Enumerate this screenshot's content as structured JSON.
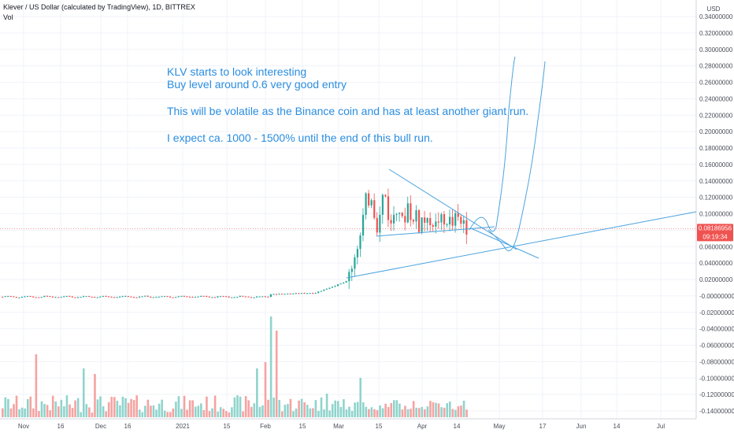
{
  "header": {
    "symbol_line": "Klever / US Dollar (calculated by TradingView), 1D, BITTREX",
    "vol_label": "Vol"
  },
  "annotation": {
    "lines": [
      "KLV starts to look interesting",
      "Buy level around 0.6 very good entry",
      "",
      "This will be volatile as the Binance coin and has at least another giant run.",
      "",
      "I expect ca. 1000 - 1500% until the end of this bull run."
    ]
  },
  "colors": {
    "up": "#26a69a",
    "down": "#ef5350",
    "vol_up": "#8fd4cc",
    "vol_down": "#f5a3a1",
    "drawing": "#4aa3df",
    "price_line": "#ef5350",
    "price_tag_bg": "#ef5350"
  },
  "price_tag": {
    "price": "0.08186956",
    "countdown": "09:19:34"
  },
  "chart_data": {
    "type": "candlestick",
    "yaxis": {
      "unit": "USD",
      "ylim": [
        -0.145,
        0.355
      ],
      "ticks": [
        "0.34000000",
        "0.32000000",
        "0.30000000",
        "0.28000000",
        "0.26000000",
        "0.24000000",
        "0.22000000",
        "0.20000000",
        "0.18000000",
        "0.16000000",
        "0.14000000",
        "0.12000000",
        "0.10000000",
        "0.08000000",
        "0.06000000",
        "0.04000000",
        "0.02000000",
        "-0.00000000",
        "-0.02000000",
        "-0.04000000",
        "-0.06000000",
        "-0.08000000",
        "-0.10000000",
        "-0.12000000",
        "-0.14000000"
      ]
    },
    "xaxis": {
      "ticks": [
        "Nov",
        "16",
        "Dec",
        "16",
        "2021",
        "15",
        "Feb",
        "15",
        "Mar",
        "15",
        "Apr",
        "14",
        "May",
        "17",
        "Jun",
        "14",
        "Jul"
      ]
    },
    "current_price": 0.08186956
  }
}
